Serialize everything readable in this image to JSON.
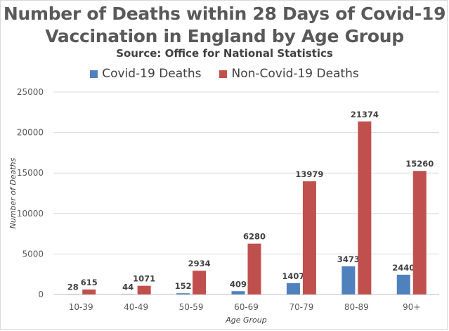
{
  "chart_data": {
    "type": "bar",
    "title": "Number of Deaths within 28 Days of Covid-19 Vaccination in England by Age Group",
    "title_lines": [
      "Number of Deaths within 28 Days of Covid-19",
      "Vaccination in England by Age Group"
    ],
    "subtitle": "Source: Office for National Statistics",
    "xlabel": "Age Group",
    "ylabel": "Number of Deaths",
    "categories": [
      "10-39",
      "40-49",
      "50-59",
      "60-69",
      "70-79",
      "80-89",
      "90+"
    ],
    "series": [
      {
        "name": "Covid-19 Deaths",
        "color": "#4f81bd",
        "values": [
          28,
          44,
          152,
          409,
          1407,
          3473,
          2440
        ]
      },
      {
        "name": "Non-Covid-19 Deaths",
        "color": "#c0504d",
        "values": [
          615,
          1071,
          2934,
          6280,
          13979,
          21374,
          15260
        ]
      }
    ],
    "ylim": [
      0,
      25000
    ],
    "yticks": [
      0,
      5000,
      10000,
      15000,
      20000,
      25000
    ],
    "grid": true,
    "legend_position": "top"
  }
}
